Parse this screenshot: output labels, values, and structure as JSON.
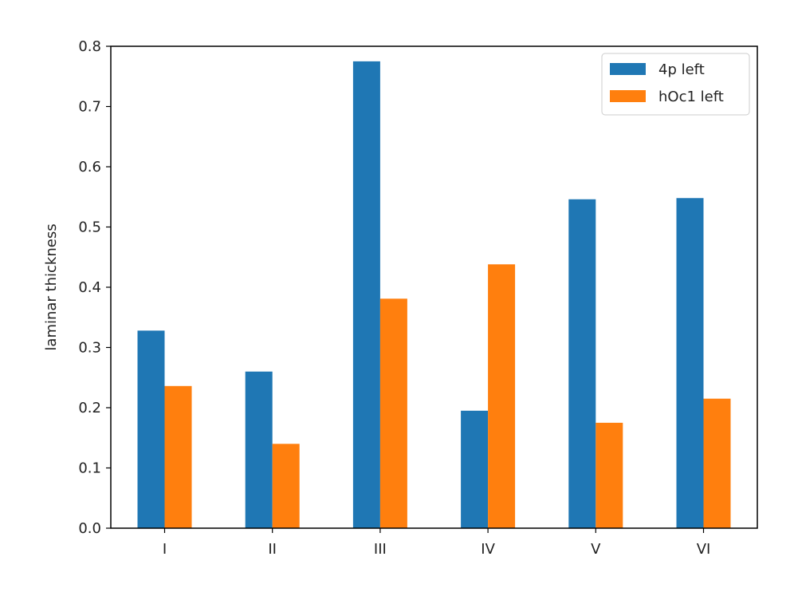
{
  "chart_data": {
    "type": "bar",
    "categories": [
      "I",
      "II",
      "III",
      "IV",
      "V",
      "VI"
    ],
    "series": [
      {
        "name": "4p left",
        "values": [
          0.328,
          0.26,
          0.775,
          0.195,
          0.546,
          0.548
        ],
        "color": "#1f77b4"
      },
      {
        "name": "hOc1 left",
        "values": [
          0.236,
          0.14,
          0.381,
          0.438,
          0.175,
          0.215
        ],
        "color": "#ff7f0e"
      }
    ],
    "title": "",
    "xlabel": "",
    "ylabel": "laminar thickness",
    "ylim": [
      0,
      0.8
    ],
    "yticks": [
      "0.0",
      "0.1",
      "0.2",
      "0.3",
      "0.4",
      "0.5",
      "0.6",
      "0.7",
      "0.8"
    ],
    "grid": false,
    "legend_position": "top-right"
  }
}
